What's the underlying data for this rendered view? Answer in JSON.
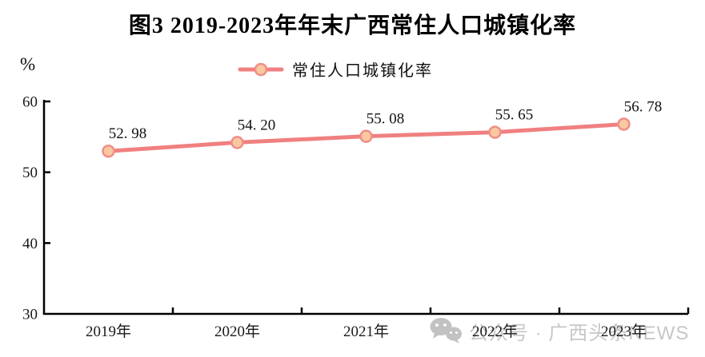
{
  "title": "图3 2019-2023年年末广西常住人口城镇化率",
  "y_axis_unit": "%",
  "legend": {
    "label": "常住人口城镇化率"
  },
  "watermark": {
    "text": "公众号 · 广西头条NEWS"
  },
  "colors": {
    "line": "#F08080",
    "marker_fill": "#FAC8A0",
    "marker_stroke": "#EF8E88",
    "axis": "#000000",
    "text": "#1a1a1a",
    "watermark": "#c7c7c7"
  },
  "chart_data": {
    "type": "line",
    "title": "图3 2019-2023年年末广西常住人口城镇化率",
    "categories": [
      "2019年",
      "2020年",
      "2021年",
      "2022年",
      "2023年"
    ],
    "series": [
      {
        "name": "常住人口城镇化率",
        "values": [
          52.98,
          54.2,
          55.08,
          55.65,
          56.78
        ],
        "labels": [
          "52. 98",
          "54. 20",
          "55. 08",
          "55. 65",
          "56. 78"
        ]
      }
    ],
    "xlabel": "",
    "ylabel": "%",
    "ylim": [
      30,
      60
    ],
    "yticks": [
      30,
      40,
      50,
      60
    ],
    "grid": false,
    "legend_position": "top"
  }
}
